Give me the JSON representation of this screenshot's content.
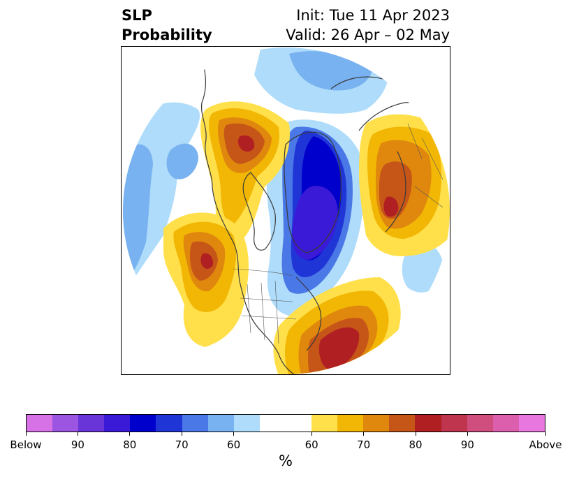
{
  "title": {
    "left_line1": "SLP",
    "left_line2": "Probability",
    "right_line1": "Init: Tue 11 Apr 2023",
    "right_line2": "Valid: 26 Apr – 02 May"
  },
  "colorbar": {
    "colors_below": [
      "#d672e6",
      "#9b55e0",
      "#6a35d8",
      "#3a1ad6",
      "#0000cc",
      "#2035d6",
      "#4a78e6",
      "#78b2f0",
      "#aedcfa"
    ],
    "neutral_color": "#ffffff",
    "colors_above": [
      "#ffe04a",
      "#f2b705",
      "#e0870e",
      "#c65518",
      "#b01f22",
      "#c0354e",
      "#d04e7e",
      "#dc5fae",
      "#e878e0"
    ],
    "tick_labels": [
      "Below",
      "90",
      "80",
      "70",
      "60",
      "60",
      "70",
      "80",
      "90",
      "Above"
    ],
    "units": "%"
  },
  "map": {
    "projection": "north-polar-stereographic",
    "palette": {
      "light_blue": "#aedcfa",
      "mid_blue": "#78b2f0",
      "blue": "#4a78e6",
      "royal_blue": "#2035d6",
      "deep_blue": "#0000cc",
      "indigo": "#3a1ad6",
      "yellow": "#ffe04a",
      "gold": "#f2b705",
      "orange": "#e0870e",
      "dark_orange": "#c65518",
      "red": "#b01f22",
      "coast": "#3a3a3a"
    }
  }
}
